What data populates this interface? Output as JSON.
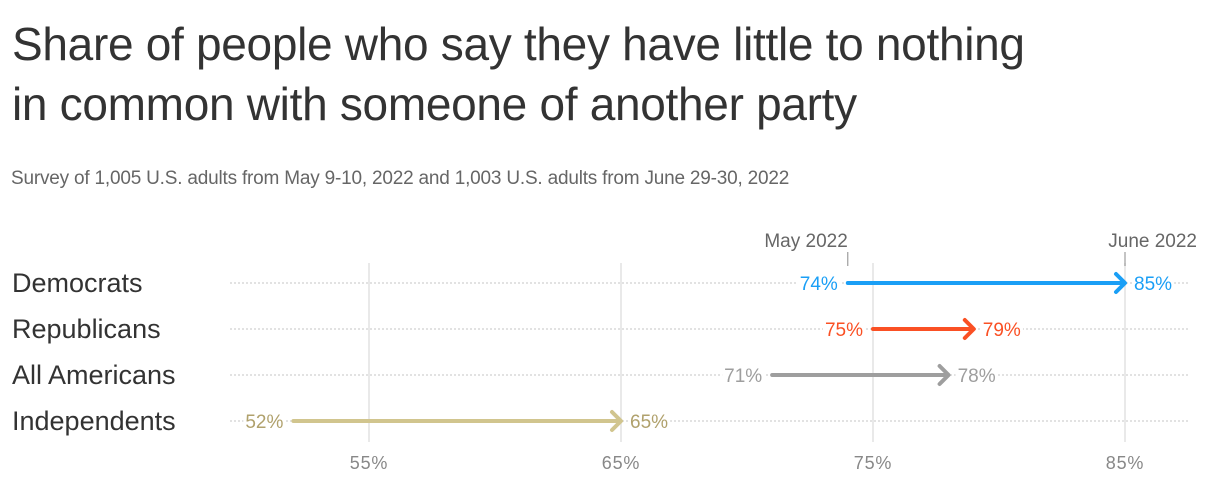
{
  "header": {
    "title_line1": "Share of people who say they have little to nothing",
    "title_line2": "in common with someone of another party",
    "subtitle": "Survey of 1,005 U.S. adults from May 9-10, 2022 and 1,003 U.S. adults from June 29-30, 2022"
  },
  "colors": {
    "democrats": "#1a9ff6",
    "republicans": "#fa5024",
    "all_americans": "#9e9e9e",
    "independents": "#d1c58e",
    "independents_label": "#b0a16c",
    "all_americans_label": "#9e9e9e",
    "gridline": "#e2e2e2",
    "rowline": "#d8d8d8",
    "axis_text": "#888888",
    "category_text": "#333333"
  },
  "chart_data": {
    "type": "arrow-dumbbell",
    "title": "Share of people who say they have little to nothing in common with someone of another party",
    "subtitle": "Survey of 1,005 U.S. adults from May 9-10, 2022 and 1,003 U.S. adults from June 29-30, 2022",
    "xlabel": "",
    "ylabel": "",
    "x_ticks": [
      "55%",
      "65%",
      "75%",
      "85%"
    ],
    "x_tick_values": [
      55,
      65,
      75,
      85
    ],
    "xlim": [
      50,
      87.5
    ],
    "grid": "vertical",
    "legend": {
      "start_label": "May 2022",
      "end_label": "June 2022",
      "position": "top, anchored at Democrats row endpoints"
    },
    "categories": [
      "Democrats",
      "Republicans",
      "All Americans",
      "Independents"
    ],
    "series": [
      {
        "name": "May 2022",
        "values": [
          74,
          75,
          71,
          52
        ]
      },
      {
        "name": "June 2022",
        "values": [
          85,
          79,
          78,
          65
        ]
      }
    ],
    "labels": [
      {
        "category": "Democrats",
        "start": "74%",
        "end": "85%"
      },
      {
        "category": "Republicans",
        "start": "75%",
        "end": "79%"
      },
      {
        "category": "All Americans",
        "start": "71%",
        "end": "78%"
      },
      {
        "category": "Independents",
        "start": "52%",
        "end": "65%"
      }
    ]
  }
}
